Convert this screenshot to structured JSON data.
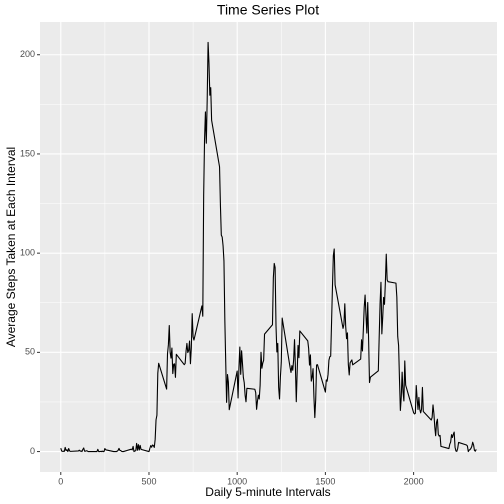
{
  "chart_data": {
    "type": "line",
    "title": "Time Series Plot",
    "xlabel": "Daily 5-minute Intervals",
    "ylabel": "Average Steps Taken at Each Interval",
    "x": [
      0,
      5,
      10,
      15,
      20,
      25,
      30,
      35,
      40,
      45,
      50,
      55,
      100,
      105,
      110,
      115,
      120,
      125,
      130,
      135,
      140,
      145,
      150,
      155,
      200,
      205,
      210,
      215,
      220,
      225,
      230,
      235,
      240,
      245,
      250,
      255,
      300,
      305,
      310,
      315,
      320,
      325,
      330,
      335,
      340,
      345,
      350,
      355,
      400,
      405,
      410,
      415,
      420,
      425,
      430,
      435,
      440,
      445,
      450,
      455,
      500,
      505,
      510,
      515,
      520,
      525,
      530,
      535,
      540,
      545,
      550,
      555,
      600,
      605,
      610,
      615,
      620,
      625,
      630,
      635,
      640,
      645,
      650,
      655,
      700,
      705,
      710,
      715,
      720,
      725,
      730,
      735,
      740,
      745,
      750,
      755,
      800,
      805,
      810,
      815,
      820,
      825,
      830,
      835,
      840,
      845,
      850,
      855,
      900,
      905,
      910,
      915,
      920,
      925,
      930,
      935,
      940,
      945,
      950,
      955,
      1000,
      1005,
      1010,
      1015,
      1020,
      1025,
      1030,
      1035,
      1040,
      1045,
      1050,
      1055,
      1100,
      1105,
      1110,
      1115,
      1120,
      1125,
      1130,
      1135,
      1140,
      1145,
      1150,
      1155,
      1200,
      1205,
      1210,
      1215,
      1220,
      1225,
      1230,
      1235,
      1240,
      1245,
      1250,
      1255,
      1300,
      1305,
      1310,
      1315,
      1320,
      1325,
      1330,
      1335,
      1340,
      1345,
      1350,
      1355,
      1400,
      1405,
      1410,
      1415,
      1420,
      1425,
      1430,
      1435,
      1440,
      1445,
      1450,
      1455,
      1500,
      1505,
      1510,
      1515,
      1520,
      1525,
      1530,
      1535,
      1540,
      1545,
      1550,
      1555,
      1600,
      1605,
      1610,
      1615,
      1620,
      1625,
      1630,
      1635,
      1640,
      1645,
      1650,
      1655,
      1700,
      1705,
      1710,
      1715,
      1720,
      1725,
      1730,
      1735,
      1740,
      1745,
      1750,
      1755,
      1800,
      1805,
      1810,
      1815,
      1820,
      1825,
      1830,
      1835,
      1840,
      1845,
      1850,
      1855,
      1900,
      1905,
      1910,
      1915,
      1920,
      1925,
      1930,
      1935,
      1940,
      1945,
      1950,
      1955,
      2000,
      2005,
      2010,
      2015,
      2020,
      2025,
      2030,
      2035,
      2040,
      2045,
      2050,
      2055,
      2100,
      2105,
      2110,
      2115,
      2120,
      2125,
      2130,
      2135,
      2140,
      2145,
      2150,
      2155,
      2200,
      2205,
      2210,
      2215,
      2220,
      2225,
      2230,
      2235,
      2240,
      2245,
      2250,
      2255,
      2300,
      2305,
      2310,
      2315,
      2320,
      2325,
      2330,
      2335,
      2340,
      2345,
      2350,
      2355
    ],
    "series": [
      {
        "color": "#000000",
        "values": [
          1.7,
          0.3,
          0.1,
          0.2,
          0.1,
          2.1,
          0.5,
          0.9,
          0,
          1.5,
          0.3,
          0.1,
          0.3,
          0.7,
          0.2,
          0.3,
          0,
          1.1,
          1.8,
          0.2,
          0.2,
          0.4,
          0.3,
          0,
          0,
          0,
          1.1,
          0,
          0,
          0.1,
          0,
          0.2,
          0,
          0,
          1.5,
          0.9,
          0,
          0,
          0,
          0,
          0.2,
          0.6,
          1.6,
          0.6,
          0.5,
          0.1,
          0,
          0,
          1.2,
          0.9,
          2.6,
          0,
          0.3,
          0.4,
          4.1,
          0.7,
          3.5,
          0.8,
          3.1,
          1.1,
          0,
          1.6,
          3.0,
          2.2,
          3.3,
          3.0,
          2.1,
          6.1,
          16.0,
          18.3,
          39.5,
          44.5,
          31.5,
          49.3,
          53.8,
          63.5,
          50.0,
          47.1,
          52.2,
          39.3,
          44.0,
          44.2,
          37.4,
          49.0,
          43.8,
          44.4,
          50.5,
          54.5,
          49.9,
          51.0,
          55.7,
          44.3,
          52.3,
          69.5,
          57.8,
          56.2,
          73.4,
          68.2,
          129.4,
          157.5,
          171.2,
          155.4,
          177.3,
          206.2,
          195.9,
          179.6,
          183.4,
          167.0,
          143.5,
          124.0,
          109.1,
          108.1,
          103.7,
          96.0,
          66.2,
          45.2,
          24.8,
          38.8,
          35.0,
          21.1,
          40.6,
          27.0,
          42.4,
          52.7,
          38.9,
          50.8,
          44.3,
          37.4,
          34.7,
          28.3,
          25.1,
          31.9,
          31.4,
          29.7,
          21.3,
          25.5,
          28.4,
          26.5,
          33.4,
          50.0,
          42.0,
          44.6,
          46.0,
          59.2,
          63.9,
          87.7,
          94.8,
          92.8,
          63.4,
          50.2,
          54.5,
          32.4,
          26.5,
          37.7,
          45.1,
          67.3,
          42.3,
          39.9,
          43.3,
          41.0,
          46.2,
          56.4,
          42.8,
          25.1,
          40.0,
          53.5,
          47.3,
          60.8,
          55.8,
          52.0,
          43.6,
          48.7,
          35.5,
          37.5,
          41.8,
          27.5,
          17.1,
          26.1,
          43.6,
          43.8,
          30.0,
          36.1,
          35.5,
          38.8,
          46.0,
          47.8,
          48.1,
          65.3,
          82.9,
          98.7,
          102.1,
          84.0,
          62.1,
          64.1,
          74.5,
          63.2,
          56.9,
          59.8,
          43.9,
          38.6,
          44.7,
          45.5,
          46.2,
          43.7,
          46.6,
          56.3,
          50.7,
          61.2,
          72.7,
          78.9,
          68.9,
          59.7,
          75.1,
          56.5,
          34.8,
          37.5,
          40.7,
          58.0,
          74.7,
          85.3,
          59.3,
          67.8,
          77.7,
          74.2,
          85.3,
          99.5,
          86.6,
          85.6,
          84.9,
          77.8,
          58.0,
          53.4,
          36.3,
          20.7,
          27.4,
          40.0,
          30.2,
          25.5,
          45.7,
          33.5,
          19.6,
          19.0,
          19.3,
          33.3,
          26.8,
          21.2,
          27.3,
          21.3,
          19.5,
          21.3,
          32.3,
          20.2,
          15.9,
          17.2,
          23.5,
          19.2,
          12.5,
          8.0,
          14.7,
          16.3,
          8.7,
          7.8,
          8.1,
          2.6,
          1.5,
          3.7,
          4.8,
          8.5,
          7.1,
          8.7,
          9.8,
          2.2,
          0.3,
          0.1,
          1.6,
          4.6,
          3.3,
          2.8,
          0,
          0.8,
          1.0,
          1.6,
          2.6,
          4.7,
          3.3,
          0.6,
          0.2,
          1.1
        ]
      }
    ],
    "xlim": [
      -117.75,
      2472.75
    ],
    "xticks": [
      0,
      500,
      1000,
      1500,
      2000
    ],
    "ylim": [
      -10.3,
      216.5
    ],
    "yticks": [
      0,
      50,
      100,
      150,
      200
    ],
    "grid": true
  }
}
